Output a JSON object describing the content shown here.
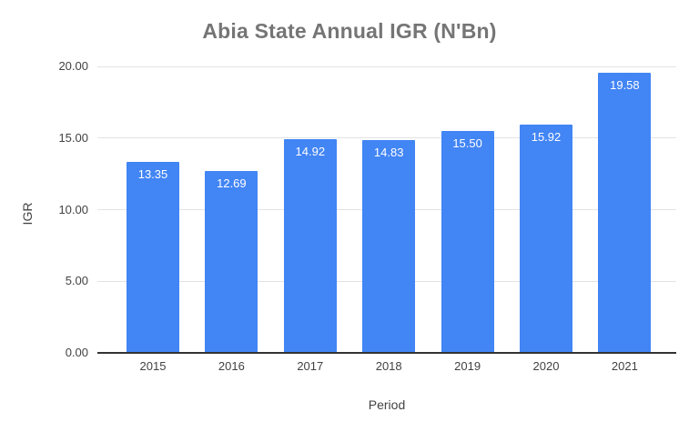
{
  "chart_data": {
    "type": "bar",
    "title": "Abia State Annual IGR (N'Bn)",
    "xlabel": "Period",
    "ylabel": "IGR",
    "categories": [
      "2015",
      "2016",
      "2017",
      "2018",
      "2019",
      "2020",
      "2021"
    ],
    "values": [
      13.35,
      12.69,
      14.92,
      14.83,
      15.5,
      15.92,
      19.58
    ],
    "value_labels": [
      "13.35",
      "12.69",
      "14.92",
      "14.83",
      "15.50",
      "15.92",
      "19.58"
    ],
    "ylim": [
      0,
      20
    ],
    "yticks": [
      0,
      5,
      10,
      15,
      20
    ],
    "ytick_labels": [
      "0.00",
      "5.00",
      "10.00",
      "15.00",
      "20.00"
    ],
    "grid": true,
    "legend_position": "none",
    "bar_color": "#4285f4",
    "value_label_color": "#ffffff",
    "title_color": "#757575",
    "tick_label_color": "#424242",
    "gridline_color": "#e3e3e3",
    "baseline_color": "#333333",
    "background_color": "#ffffff"
  }
}
